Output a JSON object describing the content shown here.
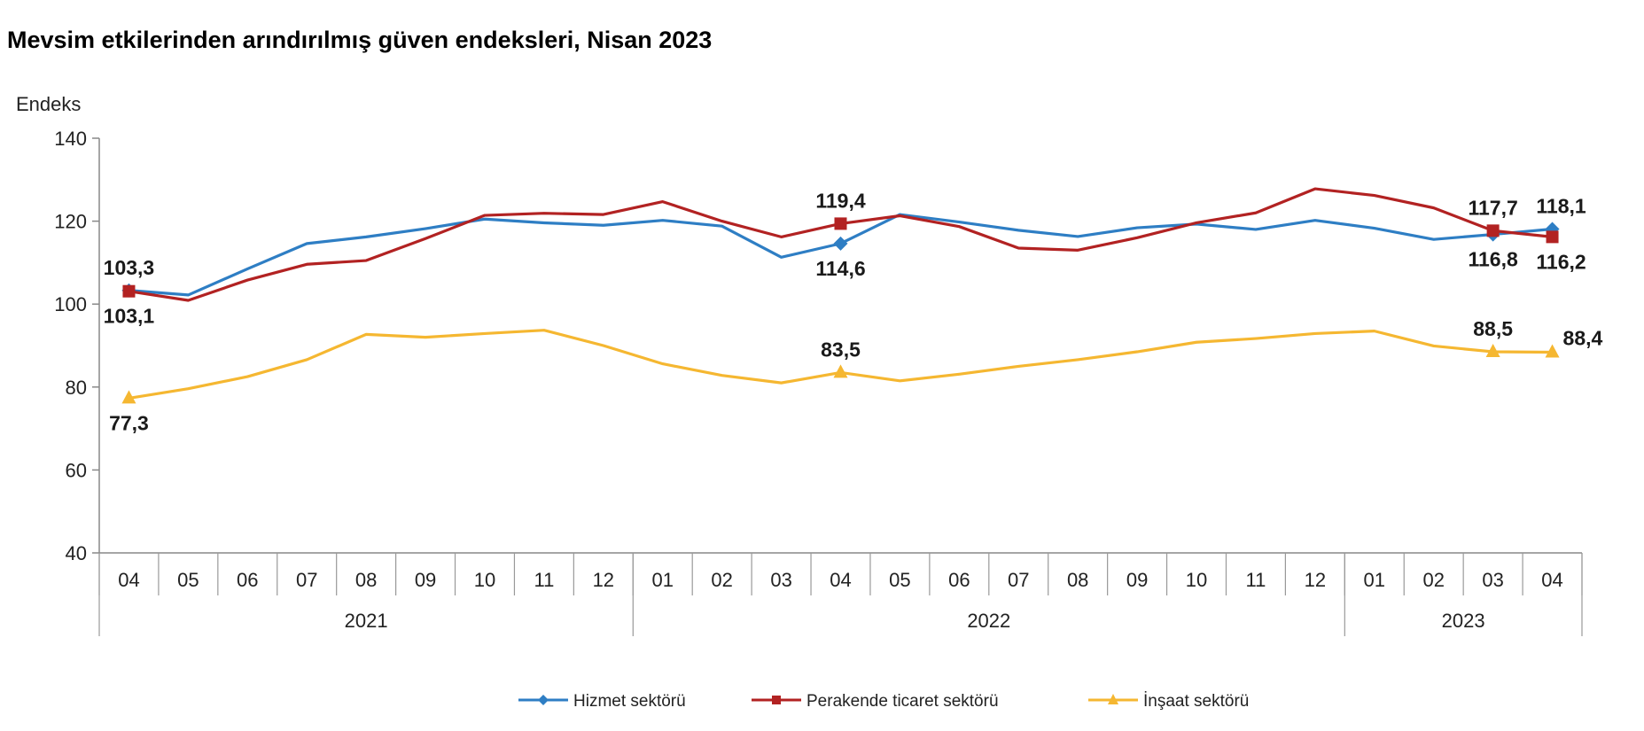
{
  "title": "Mevsim etkilerinden arındırılmış güven endeksleri, Nisan 2023",
  "chart_data": {
    "type": "line",
    "ylabel": "Endeks",
    "ylim": [
      40,
      140
    ],
    "yticks": [
      40,
      60,
      80,
      100,
      120,
      140
    ],
    "categories": [
      "04",
      "05",
      "06",
      "07",
      "08",
      "09",
      "10",
      "11",
      "12",
      "01",
      "02",
      "03",
      "04",
      "05",
      "06",
      "07",
      "08",
      "09",
      "10",
      "11",
      "12",
      "01",
      "02",
      "03",
      "04"
    ],
    "years": [
      {
        "label": "2021",
        "start": 0,
        "end": 8
      },
      {
        "label": "2022",
        "start": 9,
        "end": 20
      },
      {
        "label": "2023",
        "start": 21,
        "end": 24
      }
    ],
    "grid": false,
    "legend_position": "bottom-center",
    "series": [
      {
        "name": "Hizmet sektörü",
        "color": "#2E7EC4",
        "marker": "diamond",
        "values": [
          103.3,
          102.2,
          108.5,
          114.6,
          116.2,
          118.2,
          120.5,
          119.6,
          119.0,
          120.2,
          118.8,
          111.3,
          114.6,
          121.6,
          119.8,
          117.8,
          116.3,
          118.4,
          119.3,
          118.0,
          120.2,
          118.3,
          115.6,
          116.8,
          118.1
        ],
        "labels": [
          {
            "index": 0,
            "text": "103,3",
            "pos": "above"
          },
          {
            "index": 12,
            "text": "114,6",
            "pos": "below"
          },
          {
            "index": 23,
            "text": "116,8",
            "pos": "below"
          },
          {
            "index": 24,
            "text": "118,1",
            "pos": "above"
          }
        ]
      },
      {
        "name": "Perakende ticaret sektörü",
        "color": "#B22222",
        "marker": "square",
        "values": [
          103.1,
          100.9,
          105.8,
          109.6,
          110.5,
          115.8,
          121.4,
          121.9,
          121.6,
          124.7,
          120.0,
          116.2,
          119.4,
          121.3,
          118.7,
          113.5,
          113.0,
          116.0,
          119.6,
          122.0,
          127.8,
          126.2,
          123.2,
          117.7,
          116.2
        ],
        "labels": [
          {
            "index": 0,
            "text": "103,1",
            "pos": "below"
          },
          {
            "index": 12,
            "text": "119,4",
            "pos": "above"
          },
          {
            "index": 23,
            "text": "117,7",
            "pos": "above"
          },
          {
            "index": 24,
            "text": "116,2",
            "pos": "below"
          }
        ]
      },
      {
        "name": "İnşaat sektörü",
        "color": "#F5B731",
        "marker": "triangle",
        "values": [
          77.3,
          79.6,
          82.5,
          86.6,
          92.7,
          92.0,
          92.9,
          93.7,
          90.0,
          85.6,
          82.8,
          81.0,
          83.5,
          81.5,
          83.1,
          85.0,
          86.6,
          88.5,
          90.8,
          91.7,
          92.9,
          93.5,
          89.9,
          88.5,
          88.4
        ],
        "labels": [
          {
            "index": 0,
            "text": "77,3",
            "pos": "below"
          },
          {
            "index": 12,
            "text": "83,5",
            "pos": "above"
          },
          {
            "index": 23,
            "text": "88,5",
            "pos": "above"
          },
          {
            "index": 24,
            "text": "88,4",
            "pos": "right-above"
          }
        ]
      }
    ]
  }
}
